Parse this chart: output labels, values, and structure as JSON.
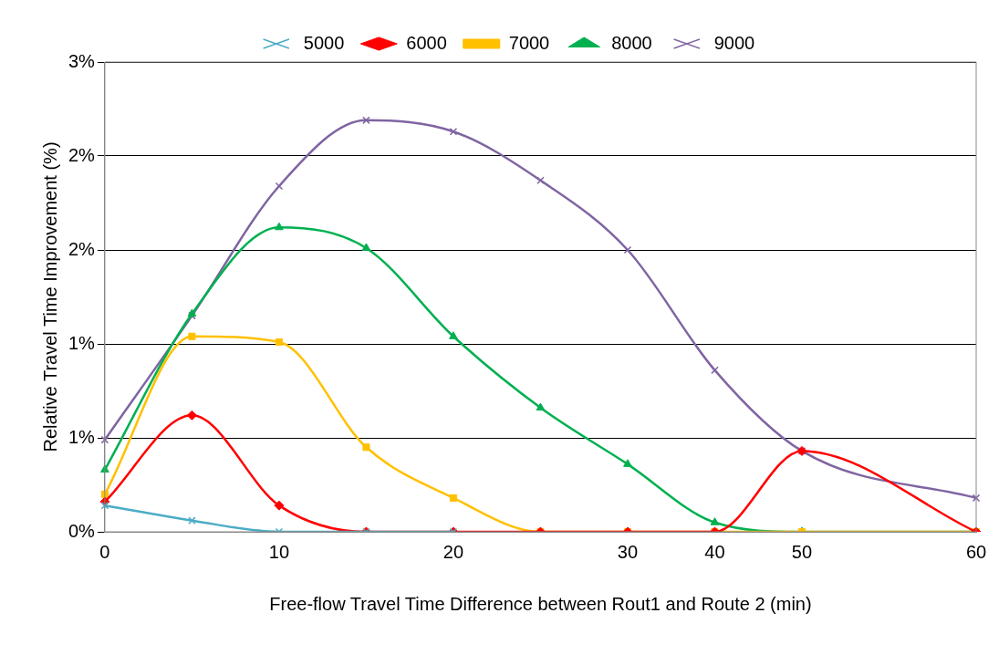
{
  "chart_data": {
    "type": "line",
    "xlabel": "Free-flow Travel Time Difference between Rout1 and Route 2 (min)",
    "ylabel": "Relative Travel Time Improvement (%)",
    "categories": [
      "0",
      null,
      "10",
      null,
      "20",
      null,
      "30",
      "40",
      "50",
      null,
      "60"
    ],
    "series": [
      {
        "name": "5000",
        "color": "#4bacc6",
        "marker": "cross",
        "values": [
          0.14,
          0.06,
          0,
          0,
          0,
          null,
          null,
          null,
          null,
          null,
          null
        ]
      },
      {
        "name": "6000",
        "color": "#ff0000",
        "marker": "diamond",
        "values": [
          0.16,
          0.62,
          0.14,
          0,
          0,
          0,
          0,
          0,
          0.43,
          null,
          0
        ]
      },
      {
        "name": "7000",
        "color": "#ffc000",
        "marker": "square",
        "values": [
          0.2,
          1.04,
          1.01,
          0.45,
          0.18,
          0,
          0,
          0,
          0,
          null,
          0
        ]
      },
      {
        "name": "8000",
        "color": "#00b050",
        "marker": "triangle",
        "values": [
          0.33,
          1.16,
          1.62,
          1.51,
          1.04,
          0.66,
          0.36,
          0.05,
          0,
          null,
          0
        ]
      },
      {
        "name": "9000",
        "color": "#8064a2",
        "marker": "cross",
        "values": [
          0.49,
          1.15,
          1.84,
          2.19,
          2.13,
          1.87,
          1.5,
          0.86,
          0.43,
          null,
          0.18
        ]
      }
    ],
    "ylim": [
      0,
      2.5
    ],
    "yticks": [
      {
        "value": 0,
        "label": "0%"
      },
      {
        "value": 0.5,
        "label": "1%"
      },
      {
        "value": 1,
        "label": "1%"
      },
      {
        "value": 1.5,
        "label": "2%"
      },
      {
        "value": 2,
        "label": "2%"
      },
      {
        "value": 2.5,
        "label": "3%"
      }
    ],
    "grid": "y",
    "legend": "top"
  }
}
